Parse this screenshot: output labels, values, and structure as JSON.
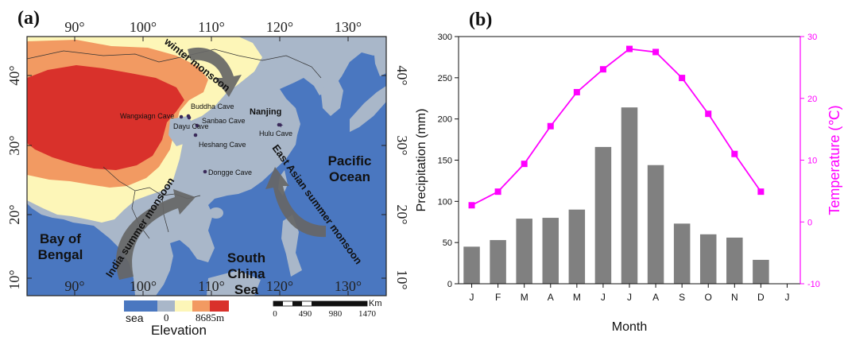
{
  "panel_a": {
    "label": "(a)",
    "top_lon_labels": [
      "90°",
      "100°",
      "110°",
      "120°",
      "130°"
    ],
    "bottom_lon_labels": [
      "90°",
      "100°",
      "110°",
      "120°",
      "130°"
    ],
    "lat_labels": [
      "40°",
      "30°",
      "20°",
      "10°"
    ],
    "caves": [
      {
        "name": "Buddha Cave"
      },
      {
        "name": "Wangxiagn Cave"
      },
      {
        "name": "Sanbao Cave"
      },
      {
        "name": "Dayu Cave"
      },
      {
        "name": "Heshang Cave"
      },
      {
        "name": "Hulu Cave"
      },
      {
        "name": "Dongge Cave"
      }
    ],
    "city": "Nanjing",
    "monsoons": {
      "winter": "winter monsoon",
      "india": "India summer monsoon",
      "east_asian": "East Asian summer monsoon"
    },
    "seas": {
      "bengal_1": "Bay of",
      "bengal_2": "Bengal",
      "scs_1": "South",
      "scs_2": "China",
      "scs_3": "Sea",
      "pacific_1": "Pacific",
      "pacific_2": "Ocean"
    },
    "legend": {
      "sea": "sea",
      "min": "0",
      "max": "8685m",
      "title": "Elevation",
      "colors": [
        "#4a77c0",
        "#a9b7c9",
        "#fdf6b8",
        "#f29a62",
        "#d9312b"
      ]
    },
    "scale": {
      "unit": "Km",
      "ticks": [
        "0",
        "490",
        "980",
        "1470"
      ]
    }
  },
  "panel_b": {
    "label": "(b)"
  },
  "chart_data": {
    "type": "bar",
    "categories": [
      "J",
      "F",
      "M",
      "A",
      "M",
      "J",
      "J",
      "A",
      "S",
      "O",
      "N",
      "D"
    ],
    "x_tick_labels": [
      "J",
      "F",
      "M",
      "A",
      "M",
      "J",
      "J",
      "A",
      "S",
      "O",
      "N",
      "D",
      "J"
    ],
    "series": [
      {
        "name": "Precipitation (mm)",
        "type": "bar",
        "axis": "left",
        "color": "#808080",
        "values": [
          45,
          53,
          79,
          80,
          90,
          166,
          214,
          144,
          73,
          60,
          56,
          29
        ]
      },
      {
        "name": "Temperature (℃)",
        "type": "line",
        "axis": "right",
        "color": "#ff00ff",
        "marker": "square",
        "values": [
          2.7,
          4.9,
          9.4,
          15.5,
          21.0,
          24.7,
          28.0,
          27.5,
          23.3,
          17.5,
          11.0,
          4.9
        ]
      }
    ],
    "xlabel": "Month",
    "ylabel": "Precipitation (mm)",
    "y2label": "Temperature (℃)",
    "ylim": [
      0,
      300
    ],
    "y2lim": [
      -10,
      30
    ],
    "yticks": [
      "0",
      "50",
      "100",
      "150",
      "200",
      "250",
      "300"
    ],
    "y2ticks": [
      "-10",
      "0",
      "10",
      "20",
      "30"
    ],
    "grid": false,
    "legend": "none"
  }
}
